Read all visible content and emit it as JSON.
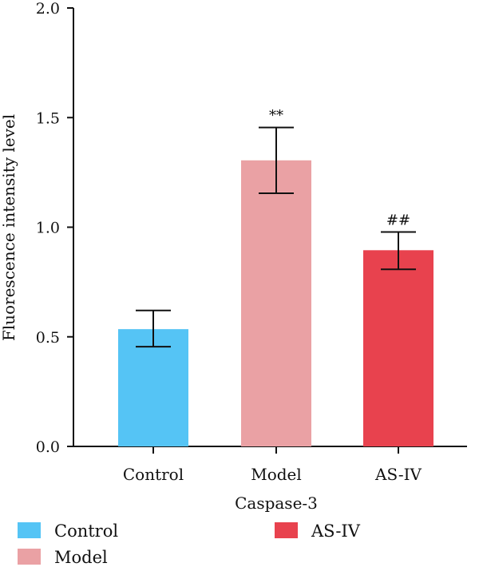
{
  "chart_data": {
    "type": "bar",
    "title": "",
    "xlabel": "Caspase-3",
    "ylabel": "Fluorescence intensity level",
    "ylim": [
      0,
      2.0
    ],
    "yticks": [
      0.0,
      0.5,
      1.0,
      1.5,
      2.0
    ],
    "ytick_labels": [
      "0.0",
      "0.5",
      "1.0",
      "1.5",
      "2.0"
    ],
    "grid": false,
    "legend_position": "bottom",
    "categories": [
      "Control",
      "Model",
      "AS-IV"
    ],
    "values": [
      0.535,
      1.305,
      0.895
    ],
    "error_low": [
      0.455,
      1.155,
      0.808
    ],
    "error_high": [
      0.62,
      1.455,
      0.978
    ],
    "annotations": [
      "",
      "**",
      "##"
    ],
    "colors": [
      "#55c4f5",
      "#eaa1a4",
      "#e8424e"
    ],
    "legend": [
      {
        "label": "Control",
        "color": "#55c4f5"
      },
      {
        "label": "Model",
        "color": "#eaa1a4"
      },
      {
        "label": "AS-IV",
        "color": "#e8424e"
      }
    ]
  }
}
